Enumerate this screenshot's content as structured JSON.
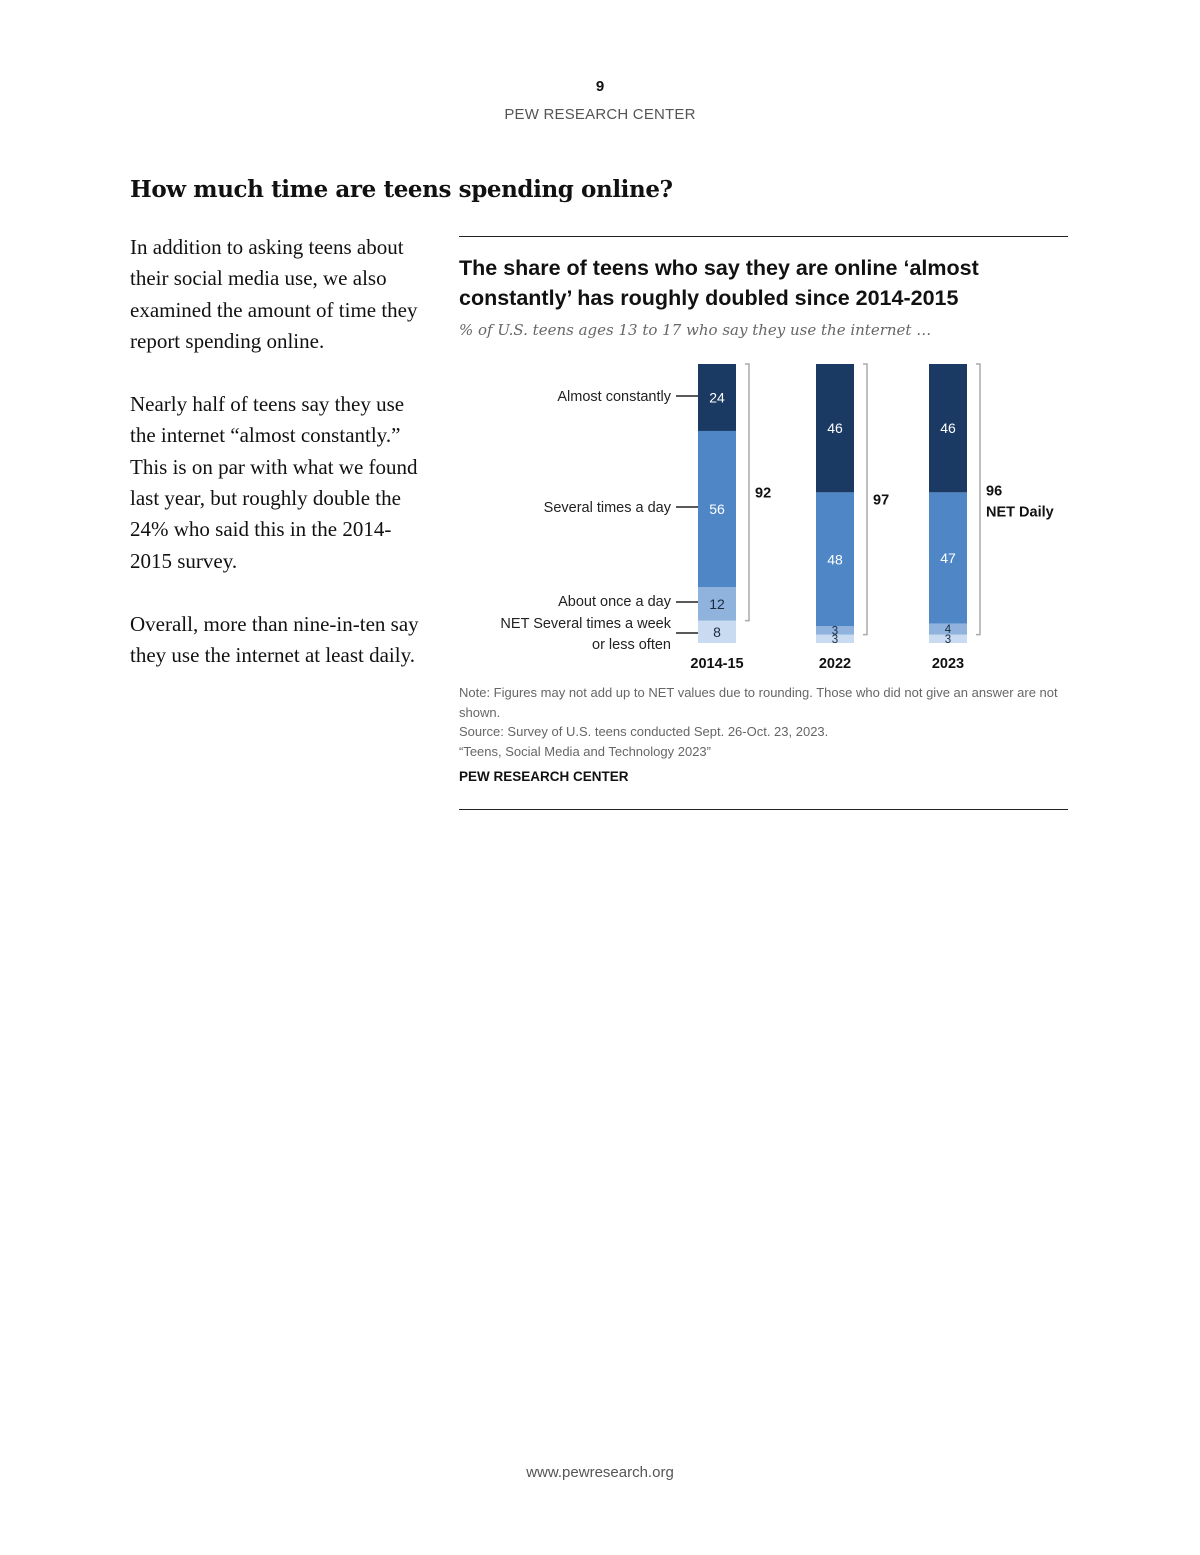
{
  "header": {
    "page_number": "9",
    "organization": "PEW RESEARCH CENTER"
  },
  "section_title": "How much time are teens spending online?",
  "body": {
    "paragraphs": [
      "In addition to asking teens about their social media use, we also examined the amount of time they report spending online.",
      "Nearly half of teens say they use the internet “almost constantly.” This is on par with what we found last year, but roughly double the 24% who said this in the 2014-2015 survey.",
      "Overall, more than nine-in-ten say they use the internet at least daily."
    ]
  },
  "figure": {
    "title": "The share of teens who say they are online ‘almost constantly’ has roughly doubled since 2014-2015",
    "subtitle": "% of U.S. teens ages 13 to 17 who say they use the internet …",
    "notes": [
      "Note: Figures may not add up to NET values due to rounding. Those who did not give an answer are not shown.",
      "Source: Survey of U.S. teens conducted Sept. 26-Oct. 23, 2023.",
      "“Teens, Social Media and Technology 2023”"
    ],
    "organization": "PEW RESEARCH CENTER"
  },
  "chart_data": {
    "type": "bar",
    "stacked": true,
    "title": "The share of teens who say they are online ‘almost constantly’ has roughly doubled since 2014-2015",
    "subtitle": "% of U.S. teens ages 13 to 17 who say they use the internet …",
    "categories": [
      "2014-15",
      "2022",
      "2023"
    ],
    "series": [
      {
        "name": "Almost constantly",
        "values": [
          24,
          46,
          46
        ],
        "color": "#1a3a63",
        "label_color": "#ffffff"
      },
      {
        "name": "Several times a day",
        "values": [
          56,
          48,
          47
        ],
        "color": "#4f86c6",
        "label_color": "#ffffff"
      },
      {
        "name": "About once a day",
        "values": [
          12,
          3,
          4
        ],
        "color": "#8fb3dd",
        "label_color": "#1a2a40"
      },
      {
        "name": "NET Several times a week or less often",
        "values": [
          8,
          3,
          3
        ],
        "color": "#c9dbf0",
        "label_color": "#1a2a40"
      }
    ],
    "legend_labels": {
      "almost_constantly": "Almost constantly",
      "several_times_a_day": "Several times a day",
      "about_once_a_day": "About once a day",
      "net_weekly_line1": "NET Several times a week",
      "net_weekly_line2": "or less often"
    },
    "net_daily": {
      "values": [
        92,
        97,
        96
      ],
      "label": "NET Daily"
    },
    "ylim": [
      0,
      100
    ]
  },
  "footer": {
    "url": "www.pewresearch.org"
  }
}
